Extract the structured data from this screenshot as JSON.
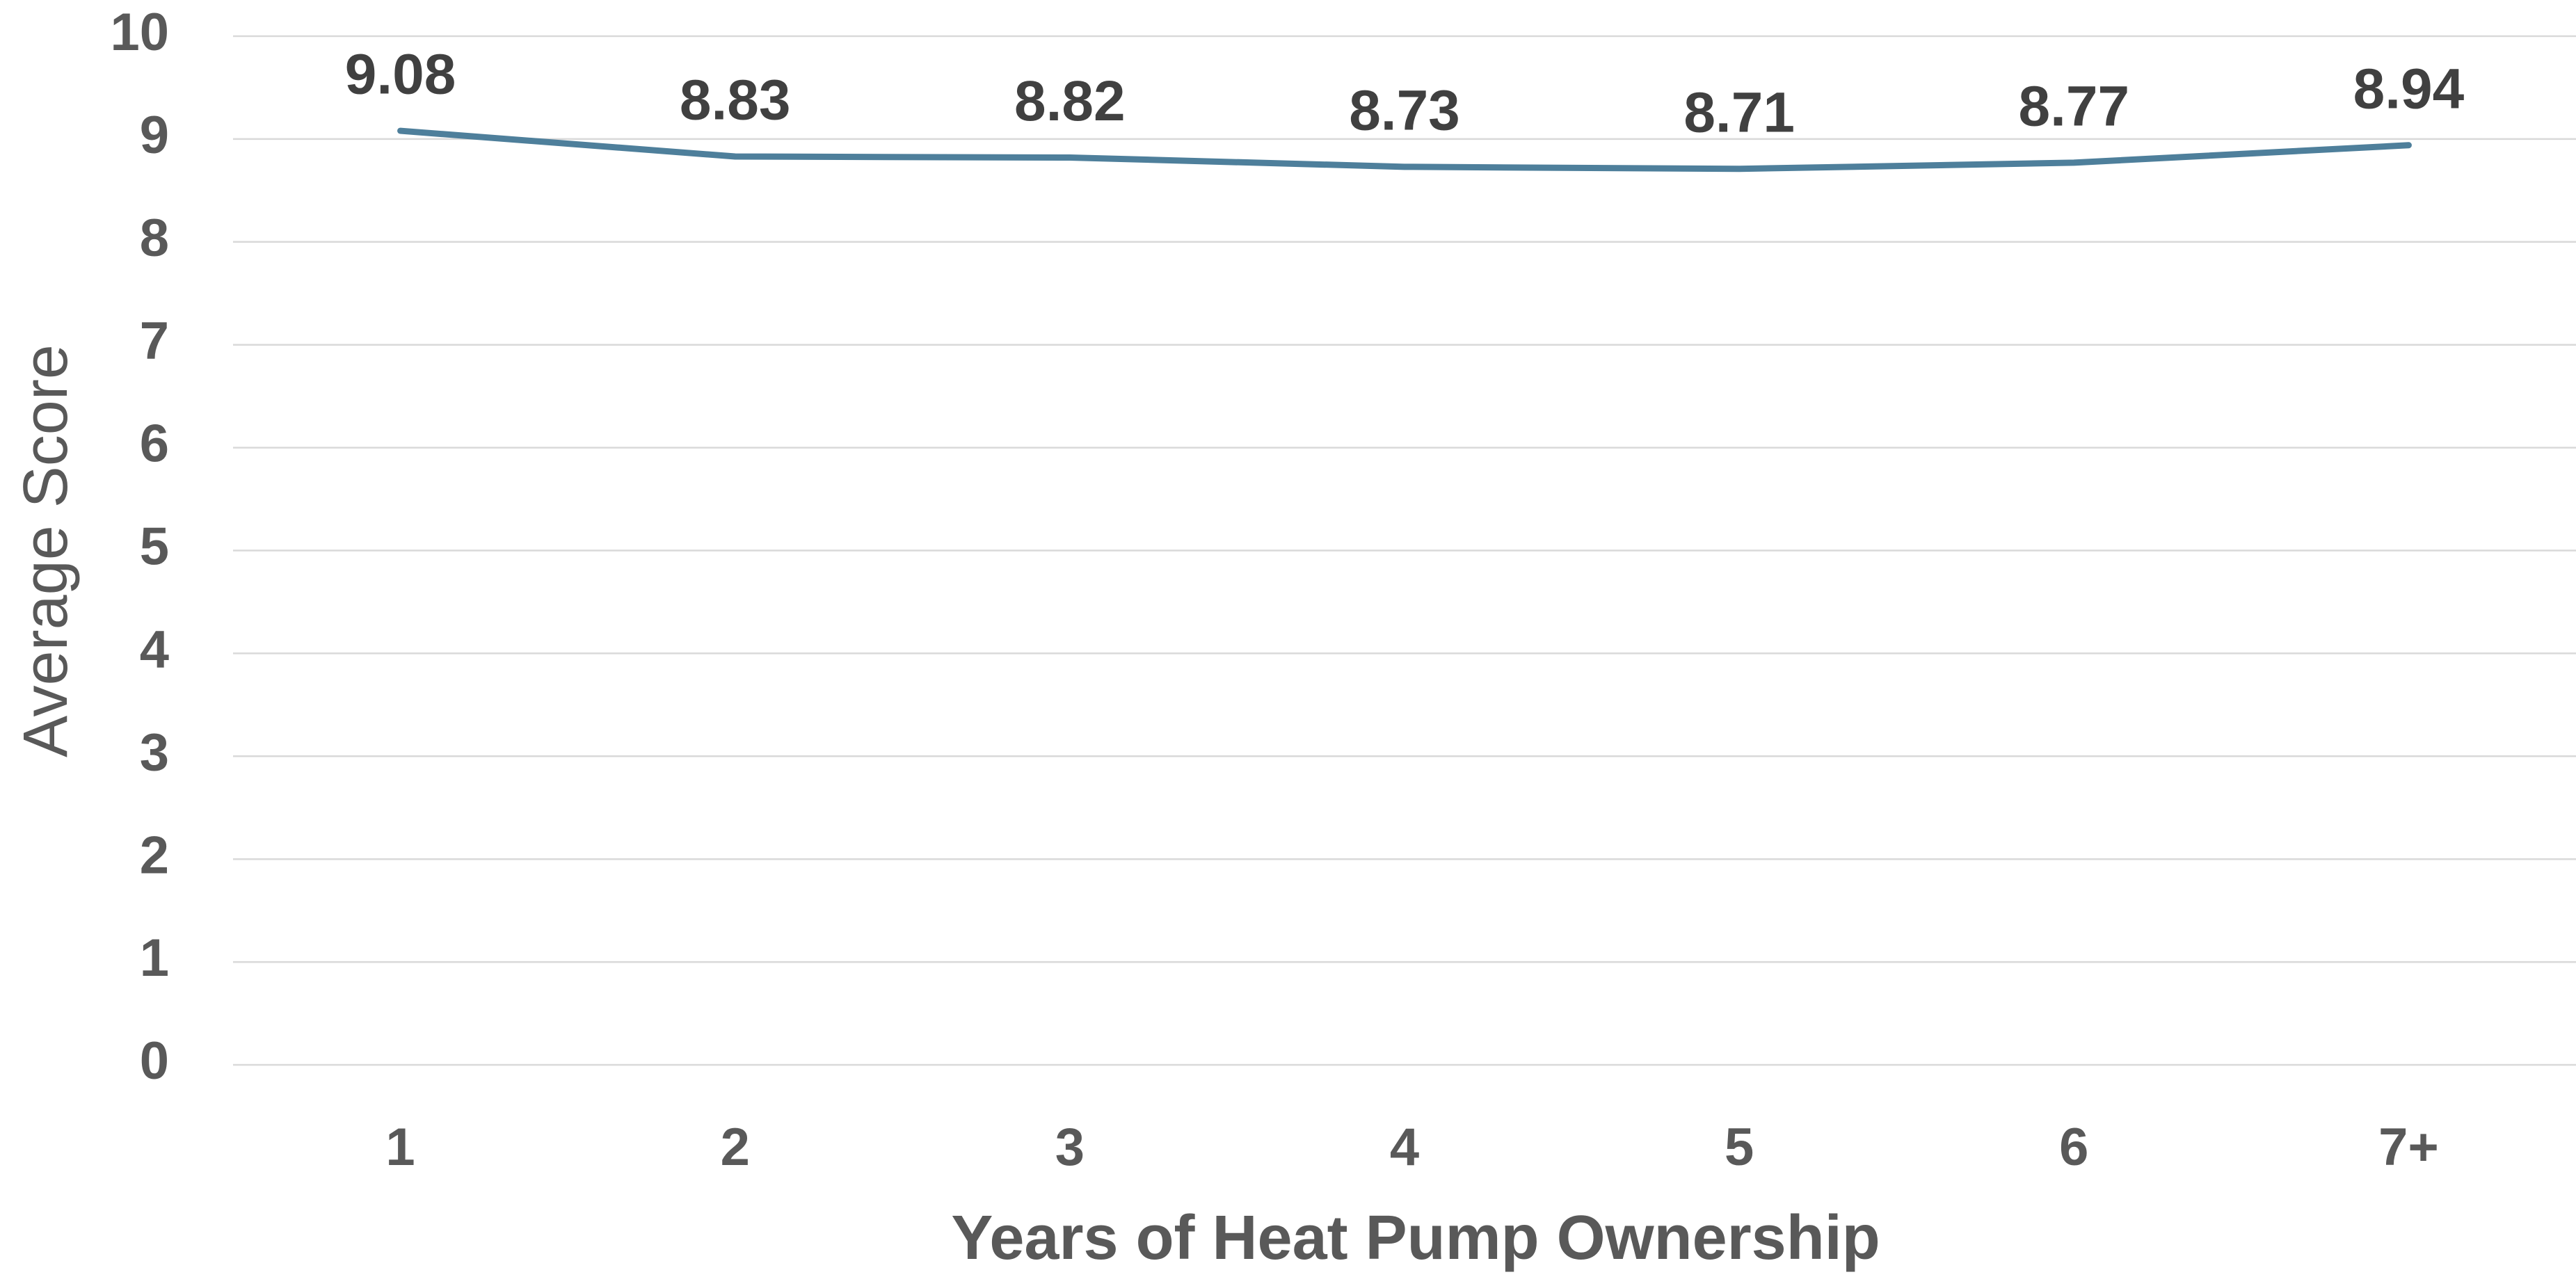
{
  "chart_data": {
    "type": "line",
    "categories": [
      "1",
      "2",
      "3",
      "4",
      "5",
      "6",
      "7+"
    ],
    "series": [
      {
        "color": "#4e7f9b",
        "values": [
          9.08,
          8.83,
          8.82,
          8.73,
          8.71,
          8.77,
          8.94
        ]
      }
    ],
    "x_label": "Years of Heat Pump Ownership",
    "y_label": "Average Score",
    "ylim": [
      0,
      10
    ],
    "yticks": [
      0,
      1,
      2,
      3,
      4,
      5,
      6,
      7,
      8,
      9,
      10
    ],
    "grid": true
  }
}
